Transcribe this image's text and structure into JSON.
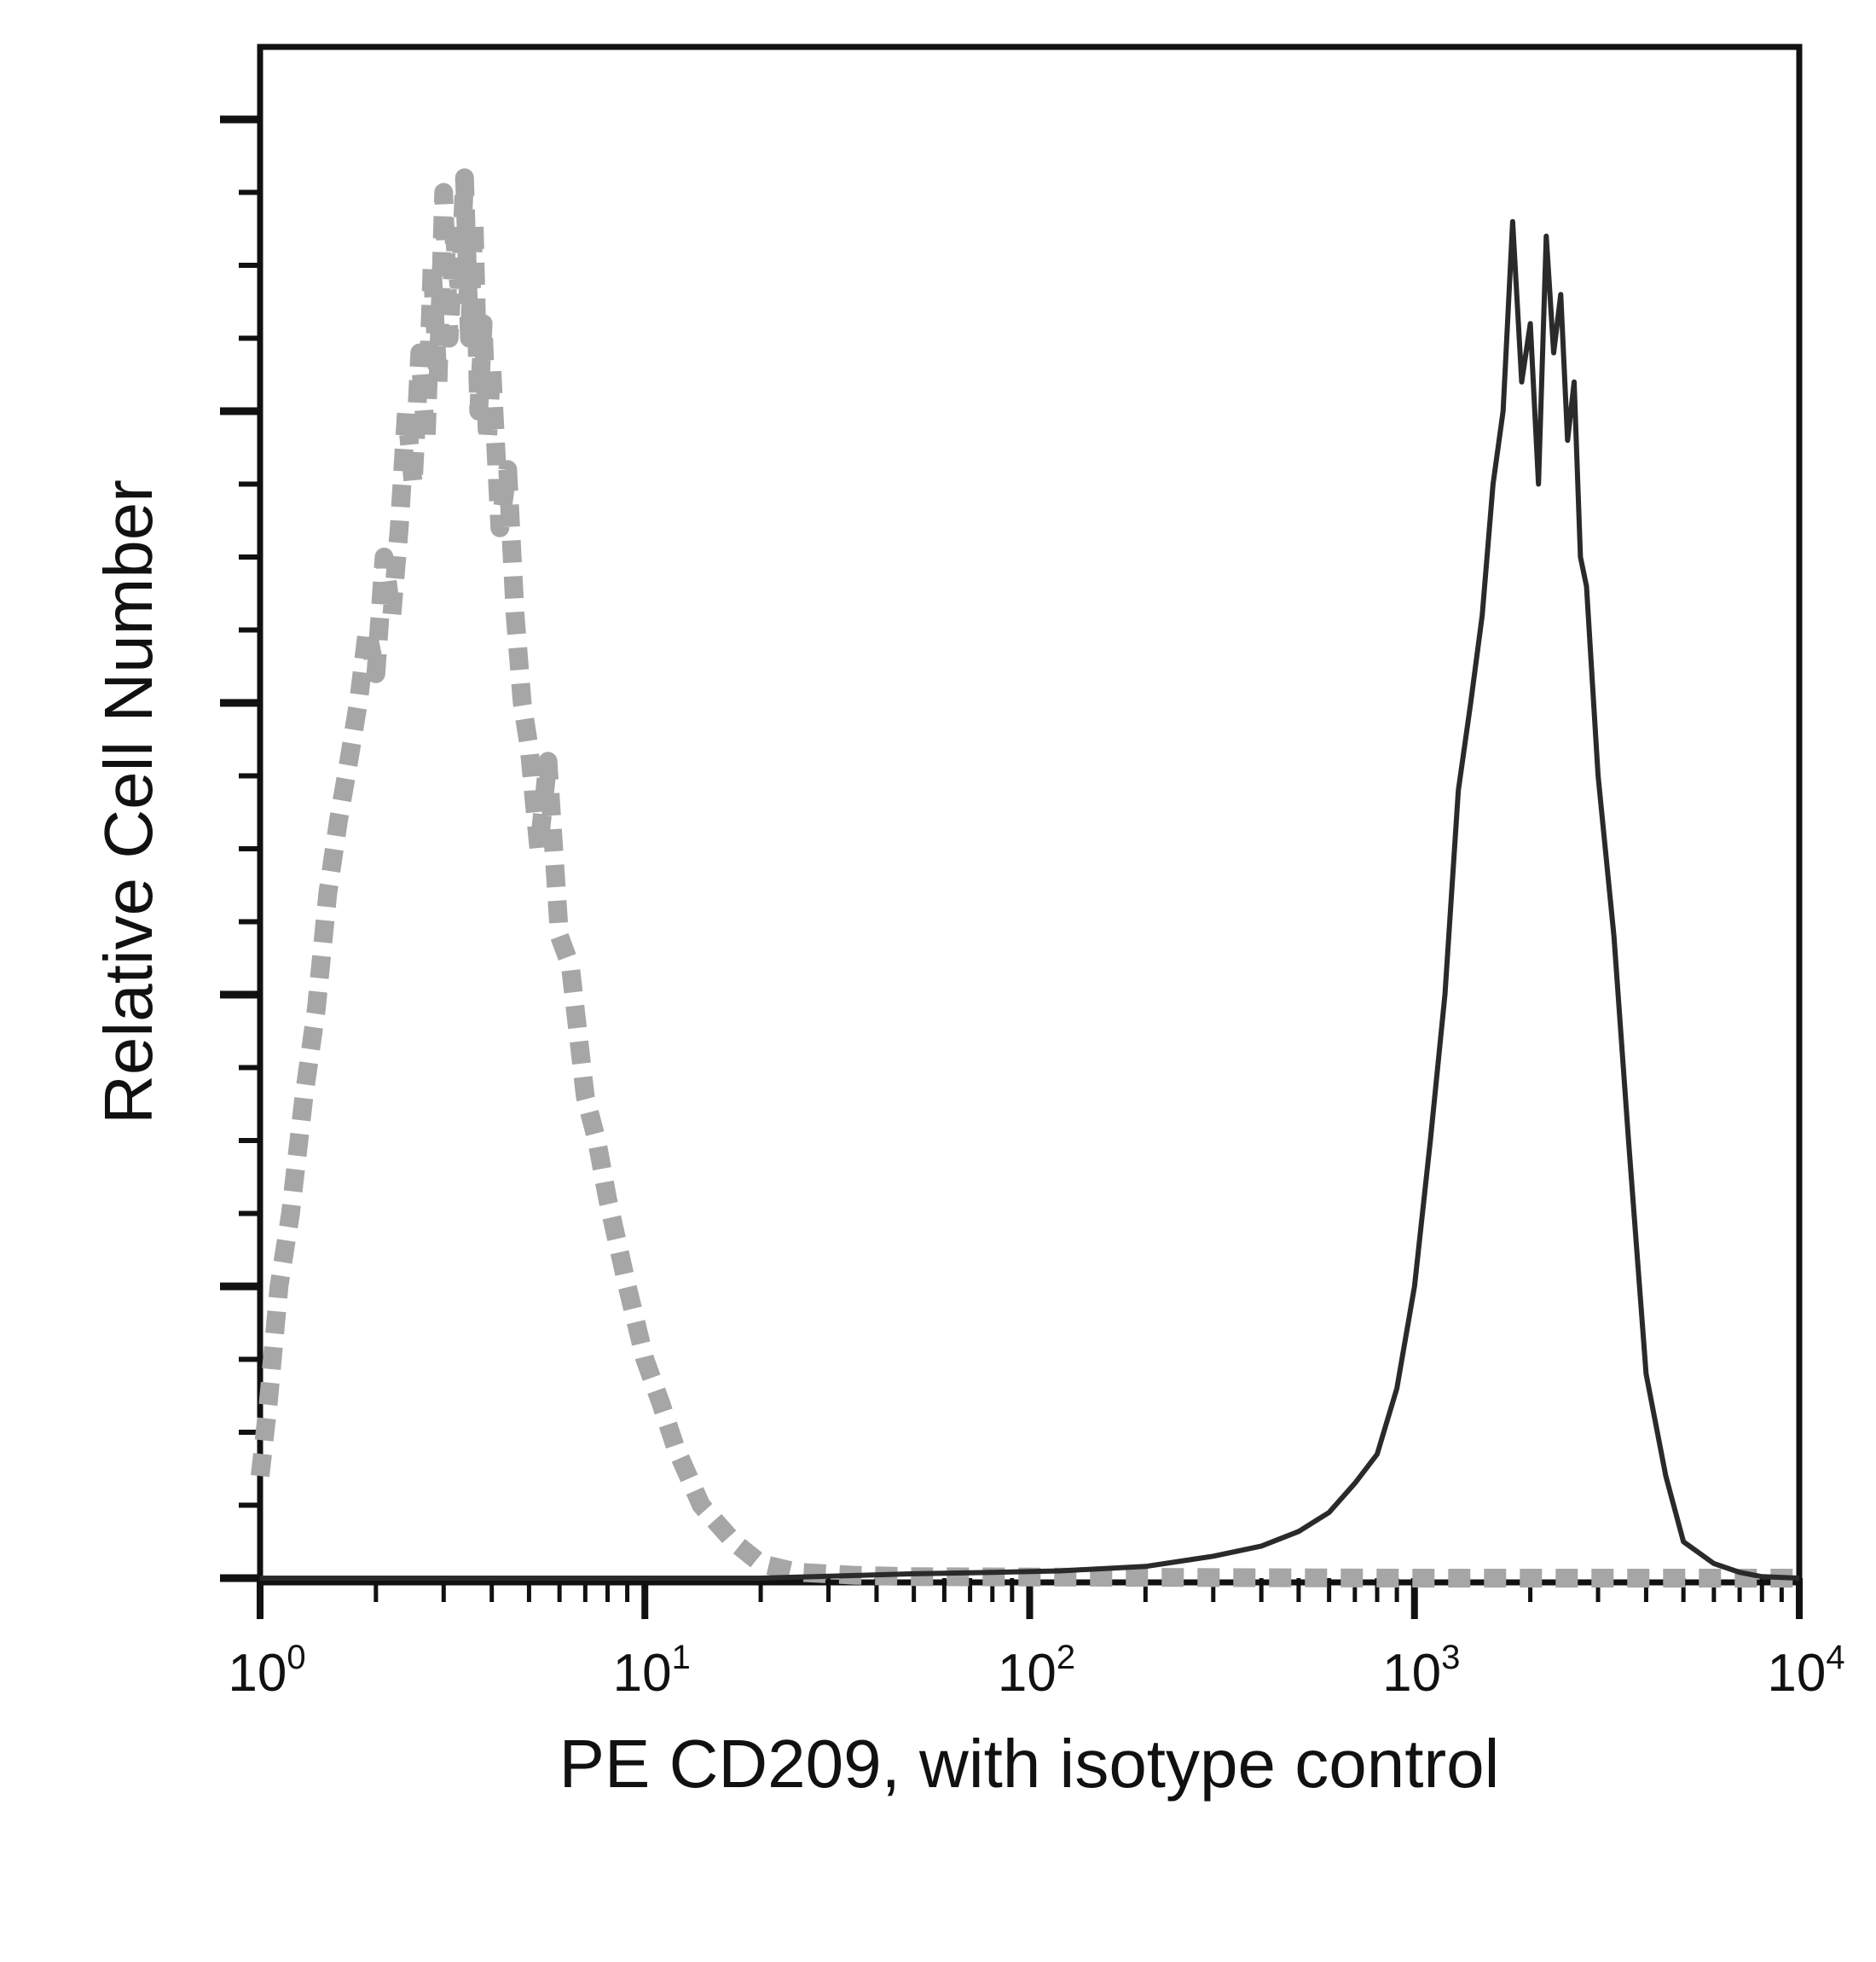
{
  "chart_data": {
    "type": "line",
    "title": "",
    "xlabel": "PE CD209, with isotype control",
    "ylabel": "Relative Cell Number",
    "x_scale": "log",
    "xlim": [
      1,
      10000
    ],
    "ylim": [
      0,
      100
    ],
    "x_ticks": [
      {
        "base": "10",
        "exp": "0"
      },
      {
        "base": "10",
        "exp": "1"
      },
      {
        "base": "10",
        "exp": "2"
      },
      {
        "base": "10",
        "exp": "3"
      },
      {
        "base": "10",
        "exp": "4"
      }
    ],
    "grid": false,
    "legend": "none",
    "series": [
      {
        "style": "dashed",
        "color": "#a6a6a6",
        "x": [
          1.0,
          1.05,
          1.12,
          1.2,
          1.3,
          1.4,
          1.5,
          1.6,
          1.7,
          1.8,
          1.9,
          2.0,
          2.1,
          2.2,
          2.3,
          2.4,
          2.5,
          2.6,
          2.7,
          2.8,
          2.9,
          3.0,
          3.1,
          3.2,
          3.3,
          3.4,
          3.5,
          3.6,
          3.7,
          3.8,
          3.9,
          4.0,
          4.2,
          4.4,
          4.6,
          4.8,
          5.0,
          5.3,
          5.6,
          6.0,
          6.4,
          7.0,
          7.5,
          8.0,
          9.0,
          10.0,
          11.0,
          12.0,
          14.0,
          17.0,
          20.0,
          25.0,
          35.0,
          50.0,
          1000.0,
          10000.0
        ],
        "values": [
          7,
          12,
          20,
          25,
          33,
          39,
          47,
          52,
          56,
          60,
          65,
          62,
          70,
          66,
          72,
          80,
          75,
          84,
          78,
          90,
          82,
          95,
          85,
          92,
          88,
          96,
          85,
          93,
          80,
          86,
          78,
          83,
          72,
          76,
          66,
          60,
          57,
          50,
          56,
          44,
          42,
          33,
          30,
          26,
          20,
          15,
          12,
          9,
          5,
          2.5,
          1,
          0.4,
          0.2,
          0.1,
          0,
          0
        ]
      },
      {
        "style": "solid",
        "color": "#2a2a2a",
        "x": [
          1.0,
          20.0,
          50.0,
          80.0,
          120.0,
          200.0,
          300.0,
          400.0,
          500.0,
          600.0,
          700.0,
          800.0,
          900.0,
          1000.0,
          1100.0,
          1200.0,
          1300.0,
          1400.0,
          1500.0,
          1600.0,
          1700.0,
          1800.0,
          1900.0,
          2000.0,
          2100.0,
          2200.0,
          2300.0,
          2400.0,
          2500.0,
          2600.0,
          2700.0,
          2800.0,
          3000.0,
          3300.0,
          3600.0,
          4000.0,
          4500.0,
          5000.0,
          6000.0,
          7000.0,
          8000.0,
          10000.0
        ],
        "values": [
          0,
          0,
          0.3,
          0.4,
          0.5,
          0.8,
          1.5,
          2.2,
          3.2,
          4.5,
          6.5,
          8.5,
          13,
          20,
          30,
          40,
          54,
          60,
          66,
          75,
          80,
          93,
          82,
          86,
          75,
          92,
          84,
          88,
          78,
          82,
          70,
          68,
          55,
          44,
          30,
          14,
          7,
          2.5,
          1,
          0.4,
          0.1,
          0
        ]
      }
    ]
  }
}
